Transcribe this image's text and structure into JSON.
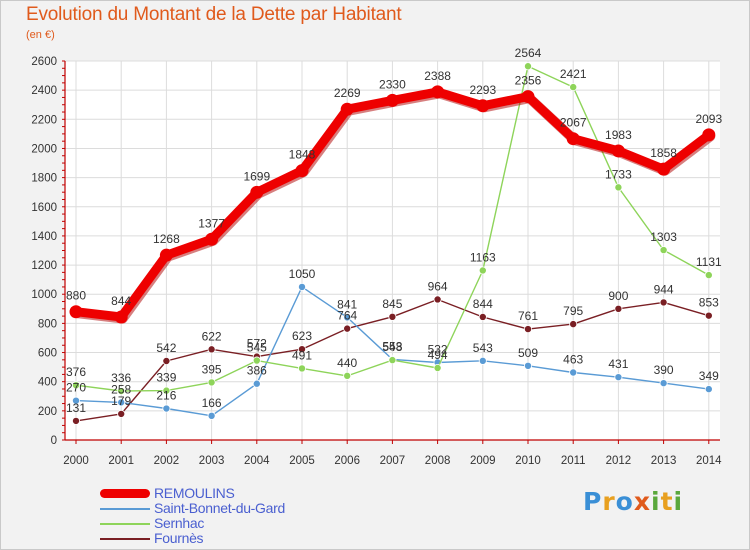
{
  "header": {
    "title": "Evolution du Montant de la Dette par Habitant",
    "unit": "(en €)"
  },
  "logo": {
    "text": "Proxiti"
  },
  "chart_data": {
    "type": "line",
    "title": "Evolution du Montant de la Dette par Habitant",
    "ylabel": "(en €)",
    "xlabel": "",
    "x": [
      "2000",
      "2001",
      "2002",
      "2003",
      "2004",
      "2005",
      "2006",
      "2007",
      "2008",
      "2009",
      "2010",
      "2011",
      "2012",
      "2013",
      "2014"
    ],
    "ylim": [
      0,
      2600
    ],
    "yticks": [
      0,
      200,
      400,
      600,
      800,
      1000,
      1200,
      1400,
      1600,
      1800,
      2000,
      2200,
      2400,
      2600
    ],
    "grid": true,
    "legend_position": "bottom-left",
    "series": [
      {
        "name": "REMOULINS",
        "color": "#ee0000",
        "values": [
          880,
          844,
          1268,
          1377,
          1699,
          1848,
          2269,
          2330,
          2388,
          2293,
          2356,
          2067,
          1983,
          1858,
          2093
        ],
        "labels": [
          "880",
          "844",
          "1268",
          "1377",
          "1699",
          "1848",
          "2269",
          "2330",
          "2388",
          "2293",
          "2356",
          "2067",
          "1983",
          "1858",
          "2093"
        ]
      },
      {
        "name": "Saint-Bonnet-du-Gard",
        "color": "#5a9bd5",
        "values": [
          270,
          258,
          216,
          166,
          386,
          1050,
          841,
          553,
          532,
          543,
          509,
          463,
          431,
          390,
          349
        ],
        "labels": [
          "270",
          "258",
          "216",
          "166",
          "386",
          "1050",
          "841",
          "553",
          "532",
          "543",
          "509",
          "463",
          "431",
          "390",
          "349"
        ]
      },
      {
        "name": "Sernhac",
        "color": "#8ed45a",
        "values": [
          376,
          336,
          339,
          395,
          545,
          491,
          440,
          548,
          494,
          1163,
          2564,
          2421,
          1733,
          1303,
          1131
        ],
        "labels": [
          "376",
          "336",
          "339",
          "395",
          "545",
          "491",
          "440",
          "548",
          "494",
          "1163",
          "2564",
          "2421",
          "1733",
          "1303",
          "1131"
        ]
      },
      {
        "name": "Fournès",
        "color": "#7a1f24",
        "values": [
          131,
          179,
          542,
          622,
          572,
          623,
          764,
          845,
          964,
          844,
          761,
          795,
          900,
          944,
          853
        ],
        "labels": [
          "131",
          "179",
          "542",
          "622",
          "572",
          "623",
          "764",
          "845",
          "964",
          "844",
          "761",
          "795",
          "900",
          "944",
          "853"
        ]
      }
    ]
  }
}
